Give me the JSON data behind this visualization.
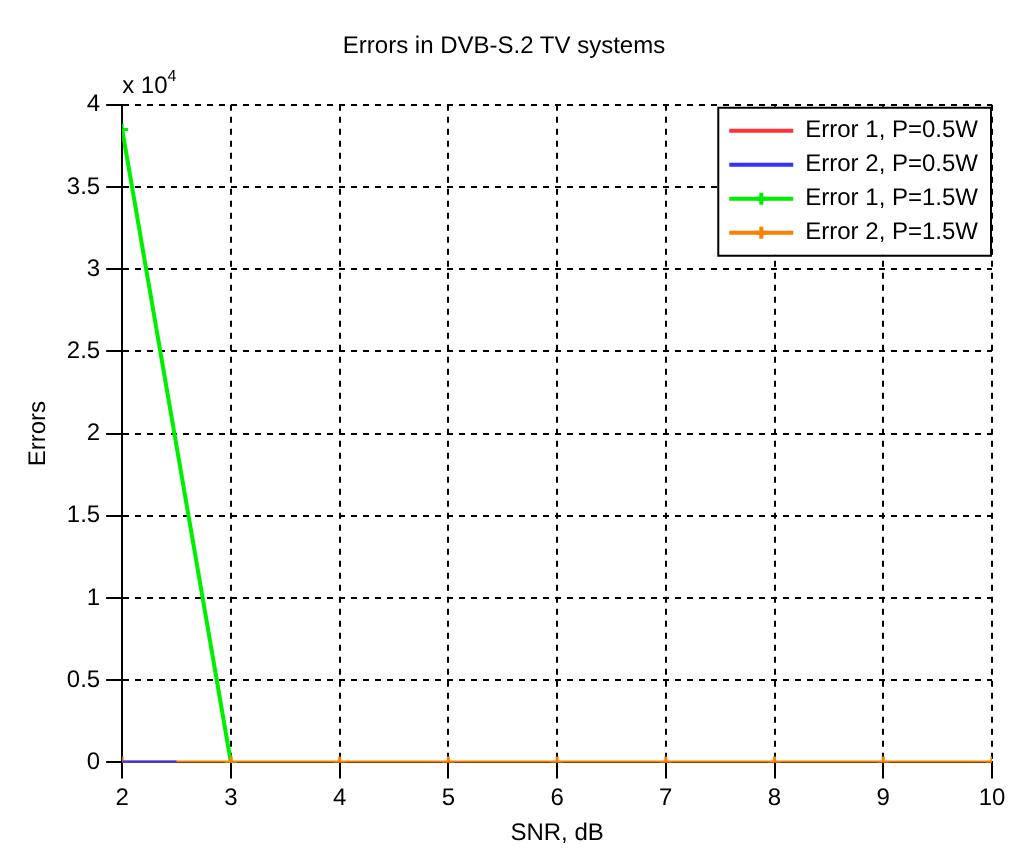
{
  "chart_data": {
    "type": "line",
    "title": "Errors in DVB-S.2 TV systems",
    "xlabel": "SNR, dB",
    "ylabel": "Errors",
    "annotations": [
      "x 10$^{4}$"
    ],
    "series": [
      {
        "name": "Error 1, P=0.5W",
        "color": "#ff3333",
        "marker": "none"
      },
      {
        "name": "Error 2, P=0.5W",
        "color": "#3333ff",
        "x": [
          2,
          2.5
        ],
        "values": [
          0,
          0
        ],
        "marker": "none"
      },
      {
        "name": "Error 1, P=1.5W",
        "color": "#00ee00",
        "x": [
          2,
          3
        ],
        "values": [
          3.85,
          0
        ],
        "marker": "cross"
      },
      {
        "name": "Error 2, P=1.5W",
        "color": "#ff8000",
        "x": [
          2,
          3,
          4,
          5,
          6,
          7,
          8,
          9,
          10
        ],
        "values": [
          0,
          0,
          0,
          0,
          0,
          0,
          0,
          0,
          0
        ],
        "marker": "cross"
      }
    ],
    "xlim": [
      2,
      10
    ],
    "xticks": [
      2,
      3,
      4,
      5,
      6,
      7,
      8,
      9,
      10
    ],
    "ylim": [
      0,
      4
    ],
    "yticks": [
      0,
      0.5,
      1,
      1.5,
      2,
      2.5,
      3,
      3.5,
      4
    ],
    "grid": true,
    "legend": "top right",
    "line_style": "solid"
  }
}
